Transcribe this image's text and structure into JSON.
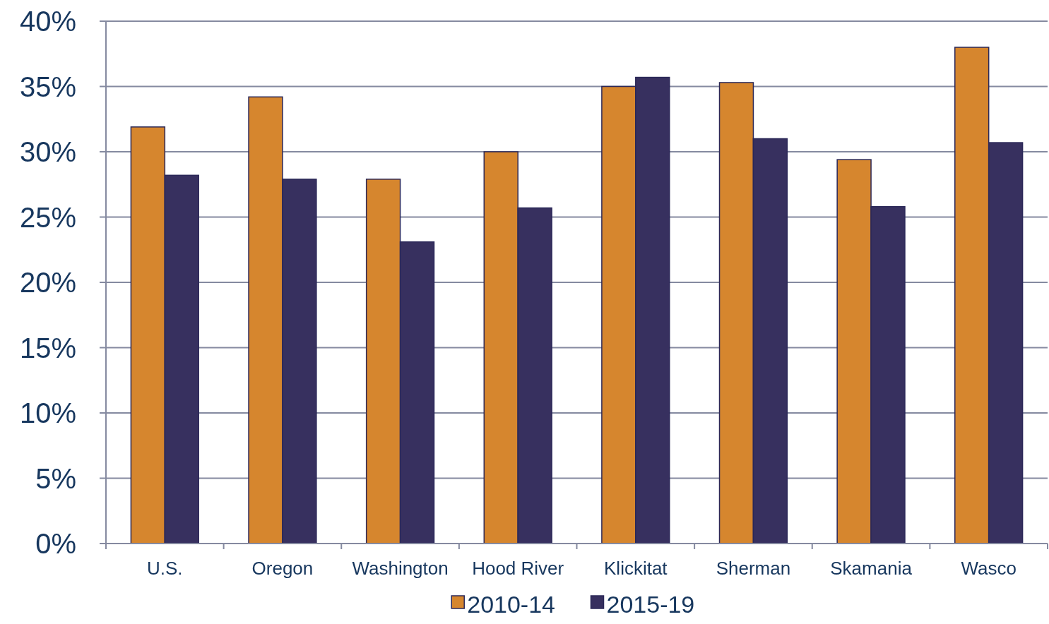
{
  "chart_data": {
    "type": "bar",
    "categories": [
      "U.S.",
      "Oregon",
      "Washington",
      "Hood River",
      "Klickitat",
      "Sherman",
      "Skamania",
      "Wasco"
    ],
    "series": [
      {
        "name": "2010-14",
        "color": "#d6862e",
        "values": [
          31.9,
          34.2,
          27.9,
          30.0,
          35.0,
          35.3,
          29.4,
          38.0
        ]
      },
      {
        "name": "2015-19",
        "color": "#37305f",
        "values": [
          28.2,
          27.9,
          23.1,
          25.7,
          35.7,
          31.0,
          25.8,
          30.7
        ]
      }
    ],
    "ylim": [
      0,
      40
    ],
    "yticks": [
      {
        "value": 0,
        "label": "0%"
      },
      {
        "value": 5,
        "label": "5%"
      },
      {
        "value": 10,
        "label": "10%"
      },
      {
        "value": 15,
        "label": "15%"
      },
      {
        "value": 20,
        "label": "20%"
      },
      {
        "value": 25,
        "label": "25%"
      },
      {
        "value": 30,
        "label": "30%"
      },
      {
        "value": 35,
        "label": "35%"
      },
      {
        "value": 40,
        "label": "40%"
      }
    ],
    "grid": "y",
    "legend": "bottom"
  }
}
